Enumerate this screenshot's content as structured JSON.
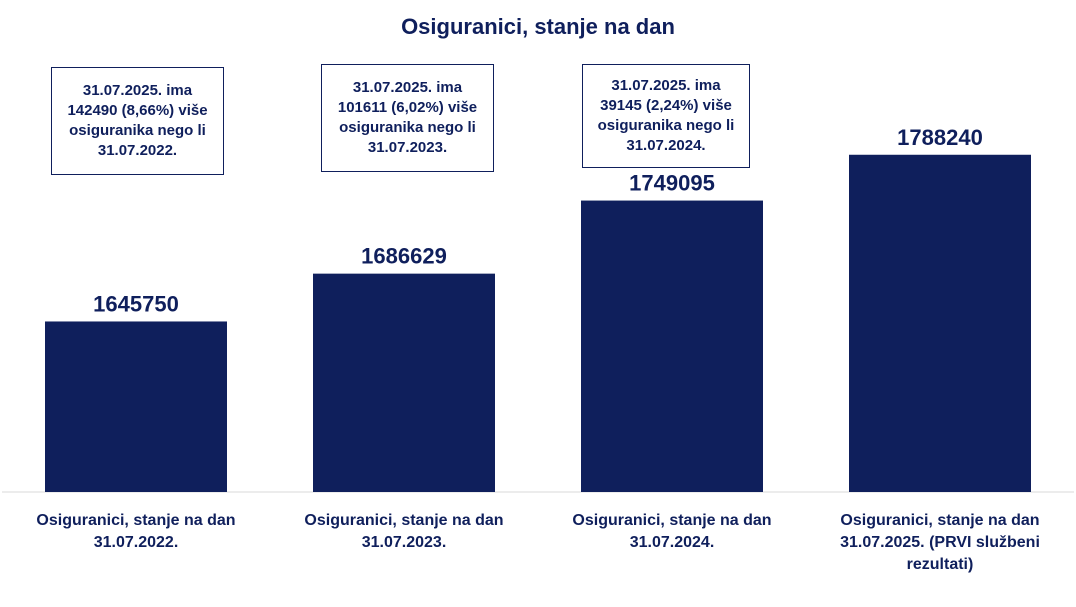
{
  "chart_data": {
    "type": "bar",
    "title": "Osiguranici, stanje na dan",
    "categories": [
      "Osiguranici, stanje na dan\n31.07.2022.",
      "Osiguranici, stanje na dan\n31.07.2023.",
      "Osiguranici, stanje na dan\n31.07.2024.",
      "Osiguranici, stanje na dan\n31.07.2025. (PRVI službeni\nrezultati)"
    ],
    "values": [
      1645750,
      1686629,
      1749095,
      1788240
    ],
    "value_labels": [
      "1645750",
      "1686629",
      "1749095",
      "1788240"
    ],
    "annotations": [
      "31.07.2025. ima\n142490 (8,66%) više\nosiguranika nego li\n31.07.2022.",
      "31.07.2025. ima\n101611 (6,02%) više\nosiguranika nego li\n31.07.2023.",
      "31.07.2025. ima\n39145 (2,24%) više\nosiguranika nego li\n31.07.2024."
    ],
    "xlabel": "",
    "ylabel": "",
    "ylim": [
      1500000,
      1800000
    ],
    "grid": false,
    "legend": "none",
    "bar_color": "#0f1f5c"
  }
}
